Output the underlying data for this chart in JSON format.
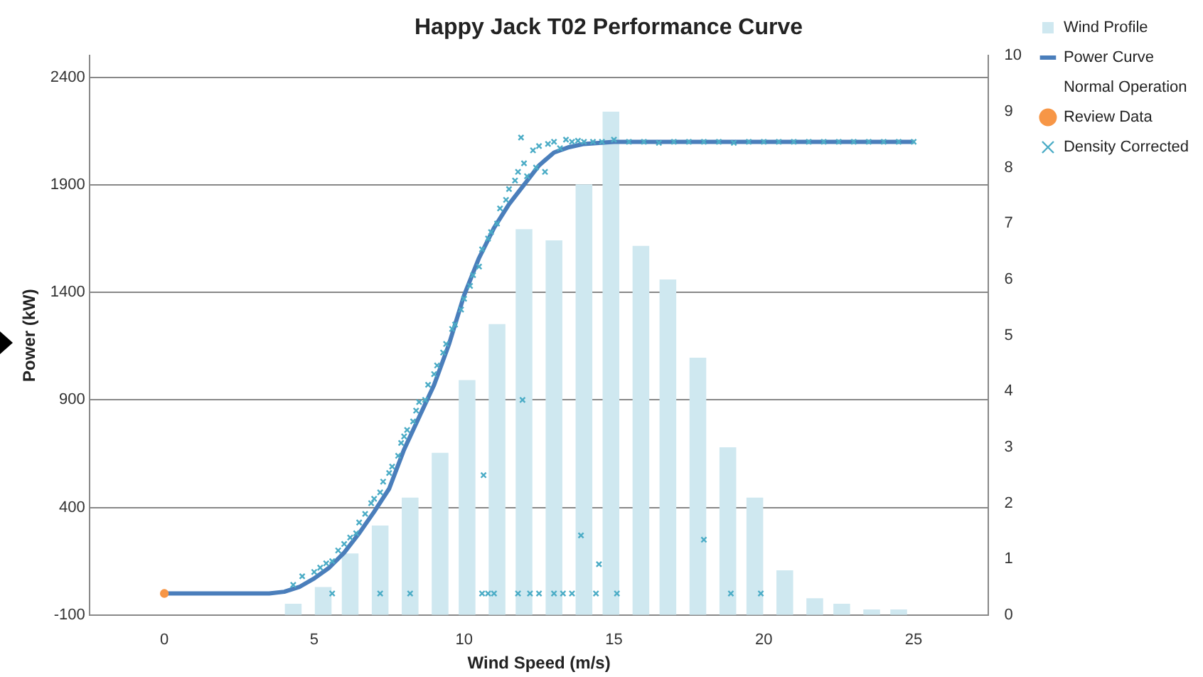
{
  "chart_data": {
    "type": "scatter",
    "title": "Happy Jack T02 Performance Curve",
    "xlabel": "Wind Speed (m/s)",
    "ylabel": "Power (kW)",
    "xlim": [
      0,
      25
    ],
    "xticks": [
      0,
      5,
      10,
      15,
      20,
      25
    ],
    "ylim": [
      -100,
      2500
    ],
    "yticks": [
      -100,
      400,
      900,
      1400,
      1900,
      2400
    ],
    "y2lim": [
      0,
      10
    ],
    "y2ticks": [
      0,
      1,
      2,
      3,
      4,
      5,
      6,
      7,
      8,
      9,
      10
    ],
    "grid": "y",
    "legend": "top right",
    "series": [
      {
        "name": "Wind Profile",
        "type": "bar",
        "axis": "y2",
        "color": "#cfe8f0",
        "x": [
          4.3,
          5.3,
          6.2,
          7.2,
          8.2,
          9.2,
          10.1,
          11.1,
          12.0,
          13.0,
          14.0,
          14.9,
          15.9,
          16.8,
          17.8,
          18.8,
          19.7,
          20.7,
          21.7,
          22.6,
          23.6,
          24.5
        ],
        "values": [
          0.2,
          0.5,
          1.1,
          1.6,
          2.1,
          2.9,
          4.2,
          5.2,
          6.9,
          6.7,
          7.7,
          9.0,
          6.6,
          6.0,
          4.6,
          3.0,
          2.1,
          0.8,
          0.3,
          0.2,
          0.1,
          0.1
        ]
      },
      {
        "name": "Power Curve",
        "type": "line",
        "color": "#4a7ebb",
        "marker": "none",
        "x": [
          0,
          3.5,
          4,
          4.5,
          5,
          5.5,
          6,
          6.5,
          7,
          7.5,
          8,
          8.5,
          9,
          9.5,
          10,
          10.5,
          11,
          11.5,
          12,
          12.5,
          13,
          13.5,
          14,
          15,
          25
        ],
        "values": [
          0,
          0,
          8,
          30,
          70,
          120,
          190,
          280,
          380,
          487,
          670,
          820,
          970,
          1160,
          1386,
          1560,
          1700,
          1810,
          1900,
          1990,
          2050,
          2075,
          2090,
          2100,
          2100
        ]
      },
      {
        "name": "Normal Operation",
        "marker": "none"
      },
      {
        "name": "Review Data",
        "color": "#f79646",
        "marker": "circle",
        "x": [
          0
        ],
        "values": [
          0
        ]
      },
      {
        "name": "Density Corrected",
        "color": "#4bacc6",
        "marker": "cross",
        "x": [
          4.3,
          4.6,
          5.0,
          5.2,
          5.4,
          5.6,
          5.8,
          6.0,
          6.2,
          6.4,
          6.5,
          6.7,
          6.9,
          7.0,
          7.2,
          7.3,
          7.5,
          7.6,
          7.8,
          7.9,
          8.0,
          8.1,
          8.3,
          8.4,
          8.5,
          8.7,
          8.8,
          9.0,
          9.1,
          9.3,
          9.4,
          9.6,
          9.7,
          9.9,
          10.0,
          10.2,
          10.3,
          10.5,
          10.6,
          10.8,
          10.9,
          11.1,
          11.2,
          11.4,
          11.5,
          11.7,
          11.8,
          11.9,
          12.0,
          12.1,
          12.3,
          12.4,
          12.5,
          12.7,
          12.8,
          13.0,
          13.2,
          13.4,
          13.6,
          13.8,
          14.0,
          14.3,
          14.6,
          15.0,
          15.5,
          16.0,
          16.5,
          17.0,
          17.5,
          18.0,
          18.5,
          19.0,
          19.5,
          20.0,
          20.5,
          21.0,
          21.5,
          22.0,
          22.5,
          23.0,
          23.5,
          24.0,
          24.5,
          25.0,
          10.65,
          11.95,
          13.9,
          14.5,
          18.0,
          5.6,
          7.2,
          8.2,
          10.6,
          10.8,
          11.0,
          11.8,
          12.2,
          12.5,
          13.0,
          13.3,
          13.6,
          14.4,
          15.1,
          18.9,
          19.9
        ],
        "values": [
          40,
          80,
          100,
          120,
          140,
          150,
          200,
          230,
          260,
          280,
          330,
          370,
          420,
          440,
          470,
          520,
          560,
          590,
          640,
          700,
          730,
          760,
          800,
          850,
          890,
          900,
          970,
          1020,
          1060,
          1120,
          1160,
          1230,
          1250,
          1320,
          1370,
          1430,
          1480,
          1520,
          1600,
          1650,
          1680,
          1720,
          1790,
          1830,
          1880,
          1920,
          1960,
          2120,
          2000,
          1940,
          2060,
          1980,
          2080,
          1960,
          2090,
          2100,
          2070,
          2110,
          2100,
          2105,
          2100,
          2100,
          2100,
          2110,
          2100,
          2100,
          2095,
          2100,
          2100,
          2100,
          2100,
          2095,
          2100,
          2100,
          2100,
          2100,
          2100,
          2100,
          2100,
          2100,
          2100,
          2100,
          2100,
          2100,
          550,
          900,
          270,
          136,
          250,
          0,
          0,
          0,
          0,
          0,
          0,
          0,
          0,
          0,
          0,
          0,
          0,
          0,
          0,
          0,
          0
        ]
      }
    ]
  }
}
